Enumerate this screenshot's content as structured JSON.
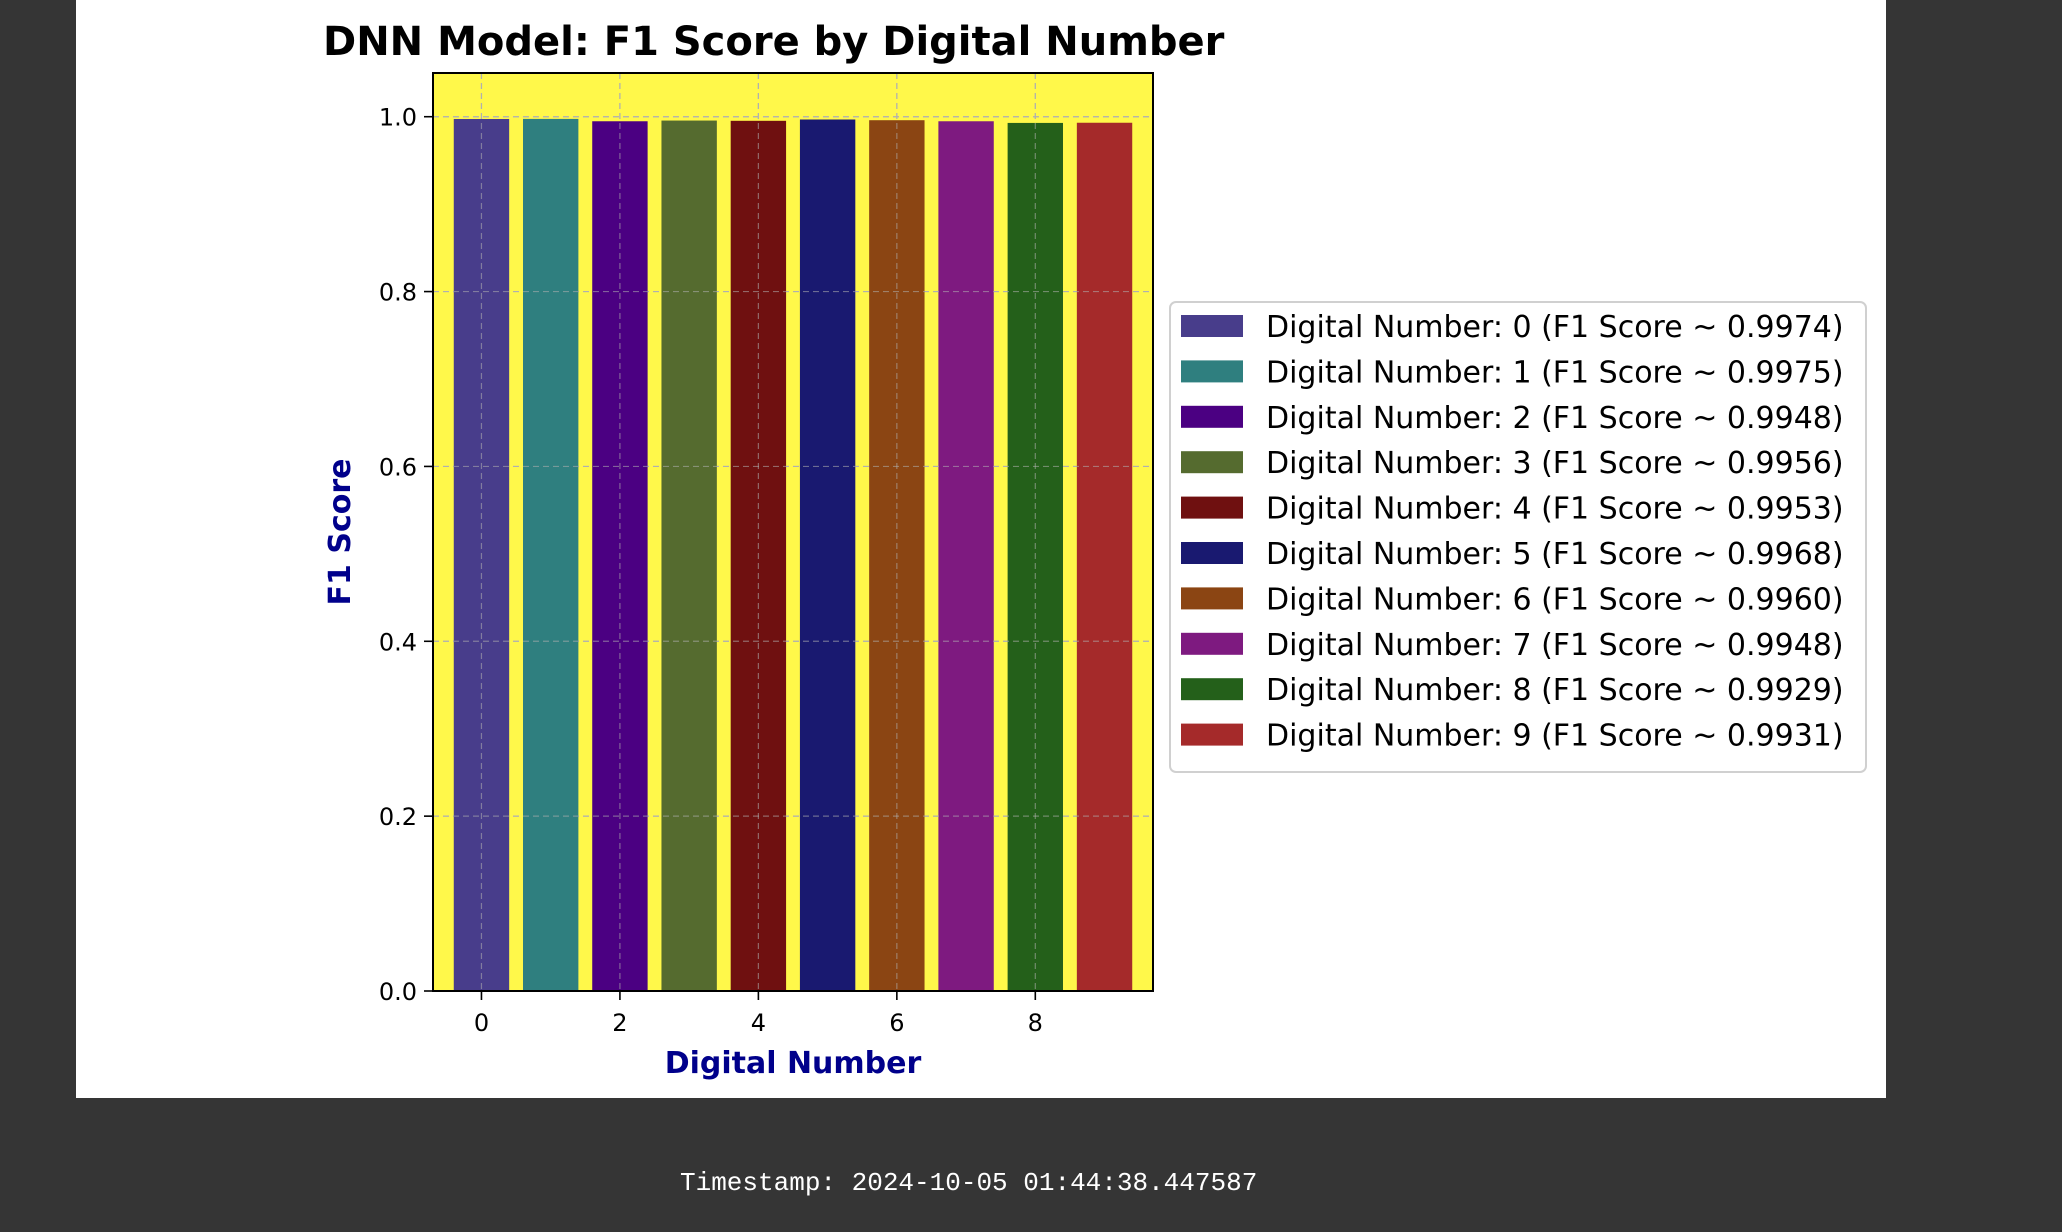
{
  "chart_data": {
    "type": "bar",
    "title": "DNN Model: F1 Score by Digital Number",
    "xlabel": "Digital Number",
    "ylabel": "F1 Score",
    "label_color": "#00008b",
    "background_color": "#fff84a",
    "grid": true,
    "ylim": [
      0,
      1.05
    ],
    "xlim": [
      -0.7,
      9.7
    ],
    "xticks": [
      "0",
      "2",
      "4",
      "6",
      "8"
    ],
    "yticks": [
      "0.0",
      "0.2",
      "0.4",
      "0.6",
      "0.8",
      "1.0"
    ],
    "categories": [
      0,
      1,
      2,
      3,
      4,
      5,
      6,
      7,
      8,
      9
    ],
    "values": [
      0.9974,
      0.9975,
      0.9948,
      0.9956,
      0.9953,
      0.9968,
      0.996,
      0.9948,
      0.9929,
      0.9931
    ],
    "colors": [
      "#483d8b",
      "#2f7f7f",
      "#4b0082",
      "#556b2f",
      "#6f1010",
      "#191970",
      "#8b4513",
      "#7e1a80",
      "#24601a",
      "#a52a2a"
    ],
    "legend_position": "center right (outside)",
    "legend": [
      "Digital Number: 0 (F1 Score ~ 0.9974)",
      "Digital Number: 1 (F1 Score ~ 0.9975)",
      "Digital Number: 2 (F1 Score ~ 0.9948)",
      "Digital Number: 3 (F1 Score ~ 0.9956)",
      "Digital Number: 4 (F1 Score ~ 0.9953)",
      "Digital Number: 5 (F1 Score ~ 0.9968)",
      "Digital Number: 6 (F1 Score ~ 0.9960)",
      "Digital Number: 7 (F1 Score ~ 0.9948)",
      "Digital Number: 8 (F1 Score ~ 0.9929)",
      "Digital Number: 9 (F1 Score ~ 0.9931)"
    ]
  },
  "footer": {
    "timestamp": "Timestamp: 2024-10-05 01:44:38.447587"
  }
}
